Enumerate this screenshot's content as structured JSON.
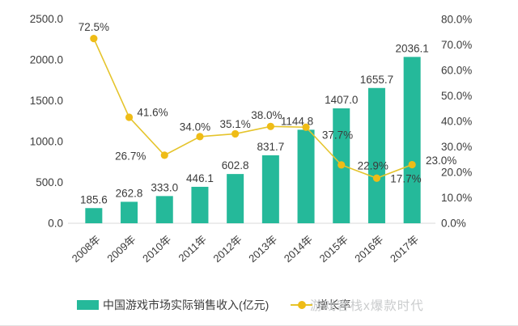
{
  "chart_data": {
    "type": "combo-bar-line",
    "title": "",
    "categories": [
      "2008年",
      "2009年",
      "2010年",
      "2011年",
      "2012年",
      "2013年",
      "2014年",
      "2015年",
      "2016年",
      "2017年"
    ],
    "series": [
      {
        "name": "中国游戏市场实际销售收入(亿元)",
        "type": "bar",
        "axis": "left",
        "color": "#25b99a",
        "values": [
          185.6,
          262.8,
          333.0,
          446.1,
          602.8,
          831.7,
          1144.8,
          1407.0,
          1655.7,
          2036.1
        ],
        "labels": [
          "185.6",
          "262.8",
          "333.0",
          "446.1",
          "602.8",
          "831.7",
          "1144.8",
          "1407.0",
          "1655.7",
          "2036.1"
        ]
      },
      {
        "name": "增长率",
        "type": "line",
        "axis": "right",
        "color": "#e5c42c",
        "marker_color": "#efbc16",
        "values": [
          72.5,
          41.6,
          26.7,
          34.0,
          35.1,
          38.0,
          37.7,
          22.9,
          17.7,
          23.0
        ],
        "labels": [
          "72.5%",
          "41.6%",
          "26.7%",
          "34.0%",
          "35.1%",
          "38.0%",
          "37.7%",
          "22.9%",
          "17.7%",
          "23.0%"
        ]
      }
    ],
    "left_axis": {
      "min": 0,
      "max": 2500,
      "ticks": [
        "0.0",
        "500.0",
        "1000.0",
        "1500.0",
        "2000.0",
        "2500.0"
      ]
    },
    "right_axis": {
      "min": 0,
      "max": 80,
      "ticks": [
        "0.0%",
        "10.0%",
        "20.0%",
        "30.0%",
        "40.0%",
        "50.0%",
        "60.0%",
        "70.0%",
        "80.0%"
      ]
    },
    "grid": false,
    "legend_position": "bottom"
  },
  "colors": {
    "bar": "#25b99a",
    "line": "#e5c42c",
    "marker": "#efbc16",
    "text": "#3b3b3b",
    "axis_line": "#d9d9d9",
    "watermark": "#c9cbcc"
  },
  "watermark": "游戏客栈x爆款时代"
}
